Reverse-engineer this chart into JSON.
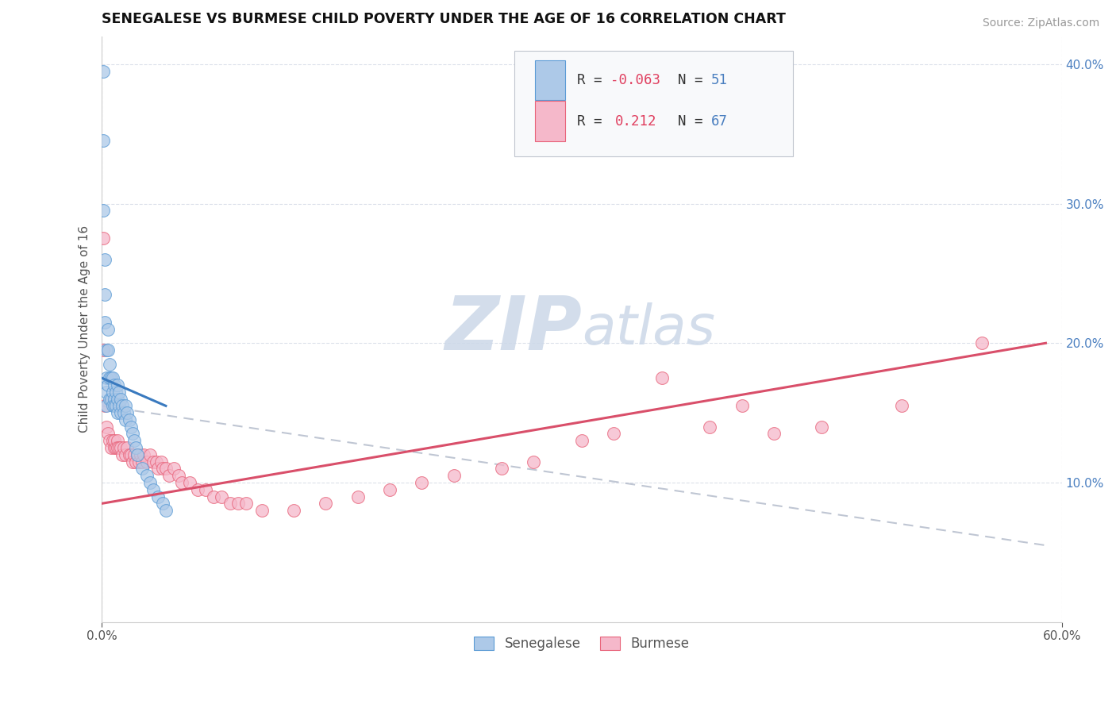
{
  "title": "SENEGALESE VS BURMESE CHILD POVERTY UNDER THE AGE OF 16 CORRELATION CHART",
  "source": "Source: ZipAtlas.com",
  "ylabel": "Child Poverty Under the Age of 16",
  "xlim": [
    0.0,
    0.6
  ],
  "ylim": [
    0.0,
    0.42
  ],
  "xticks": [
    0.0,
    0.6
  ],
  "xticklabels": [
    "0.0%",
    "60.0%"
  ],
  "yticks": [
    0.1,
    0.2,
    0.3,
    0.4
  ],
  "yticklabels": [
    "10.0%",
    "20.0%",
    "30.0%",
    "40.0%"
  ],
  "senegalese_color": "#adc9e8",
  "burmese_color": "#f5b8ca",
  "senegalese_edge_color": "#5b9bd5",
  "burmese_edge_color": "#e8637a",
  "senegalese_line_color": "#3a7abf",
  "burmese_line_color": "#d94f6a",
  "grey_dash_color": "#b0b8c8",
  "watermark_color": "#ccd8e8",
  "background_color": "#ffffff",
  "grid_color": "#d8dde8",
  "legend_box_color": "#f0f2f5",
  "legend_edge_color": "#c8ccd4",
  "legend_text_color": "#333333",
  "R_value_color": "#e05070",
  "N_value_color": "#4a7fc0",
  "sen_x": [
    0.001,
    0.001,
    0.001,
    0.002,
    0.002,
    0.002,
    0.003,
    0.003,
    0.003,
    0.003,
    0.004,
    0.004,
    0.004,
    0.005,
    0.005,
    0.005,
    0.006,
    0.006,
    0.007,
    0.007,
    0.007,
    0.008,
    0.008,
    0.008,
    0.009,
    0.009,
    0.01,
    0.01,
    0.01,
    0.011,
    0.011,
    0.012,
    0.012,
    0.013,
    0.014,
    0.015,
    0.015,
    0.016,
    0.017,
    0.018,
    0.019,
    0.02,
    0.021,
    0.022,
    0.025,
    0.028,
    0.03,
    0.032,
    0.035,
    0.038,
    0.04
  ],
  "sen_y": [
    0.395,
    0.345,
    0.295,
    0.26,
    0.235,
    0.215,
    0.195,
    0.175,
    0.165,
    0.155,
    0.21,
    0.195,
    0.17,
    0.185,
    0.175,
    0.16,
    0.175,
    0.16,
    0.175,
    0.165,
    0.155,
    0.17,
    0.16,
    0.155,
    0.165,
    0.155,
    0.17,
    0.16,
    0.15,
    0.165,
    0.155,
    0.16,
    0.15,
    0.155,
    0.15,
    0.155,
    0.145,
    0.15,
    0.145,
    0.14,
    0.135,
    0.13,
    0.125,
    0.12,
    0.11,
    0.105,
    0.1,
    0.095,
    0.09,
    0.085,
    0.08
  ],
  "bur_x": [
    0.001,
    0.001,
    0.002,
    0.003,
    0.004,
    0.005,
    0.006,
    0.007,
    0.008,
    0.008,
    0.009,
    0.01,
    0.01,
    0.011,
    0.012,
    0.013,
    0.014,
    0.015,
    0.016,
    0.017,
    0.018,
    0.019,
    0.02,
    0.021,
    0.022,
    0.023,
    0.024,
    0.025,
    0.026,
    0.028,
    0.03,
    0.032,
    0.034,
    0.035,
    0.037,
    0.038,
    0.04,
    0.042,
    0.045,
    0.048,
    0.05,
    0.055,
    0.06,
    0.065,
    0.07,
    0.075,
    0.08,
    0.085,
    0.09,
    0.1,
    0.12,
    0.14,
    0.16,
    0.18,
    0.2,
    0.22,
    0.25,
    0.27,
    0.3,
    0.32,
    0.35,
    0.38,
    0.4,
    0.42,
    0.45,
    0.5,
    0.55
  ],
  "bur_y": [
    0.275,
    0.195,
    0.155,
    0.14,
    0.135,
    0.13,
    0.125,
    0.13,
    0.125,
    0.13,
    0.125,
    0.13,
    0.125,
    0.125,
    0.125,
    0.12,
    0.125,
    0.12,
    0.125,
    0.12,
    0.12,
    0.115,
    0.12,
    0.115,
    0.12,
    0.115,
    0.12,
    0.115,
    0.12,
    0.115,
    0.12,
    0.115,
    0.115,
    0.11,
    0.115,
    0.11,
    0.11,
    0.105,
    0.11,
    0.105,
    0.1,
    0.1,
    0.095,
    0.095,
    0.09,
    0.09,
    0.085,
    0.085,
    0.085,
    0.08,
    0.08,
    0.085,
    0.09,
    0.095,
    0.1,
    0.105,
    0.11,
    0.115,
    0.13,
    0.135,
    0.175,
    0.14,
    0.155,
    0.135,
    0.14,
    0.155,
    0.2
  ],
  "sen_line_x0": 0.0,
  "sen_line_x1": 0.04,
  "sen_line_y0": 0.175,
  "sen_line_y1": 0.155,
  "bur_line_x0": 0.0,
  "bur_line_x1": 0.59,
  "bur_line_y0": 0.085,
  "bur_line_y1": 0.2,
  "grey_line_x0": 0.0,
  "grey_line_x1": 0.59,
  "grey_line_y0": 0.155,
  "grey_line_y1": 0.055
}
